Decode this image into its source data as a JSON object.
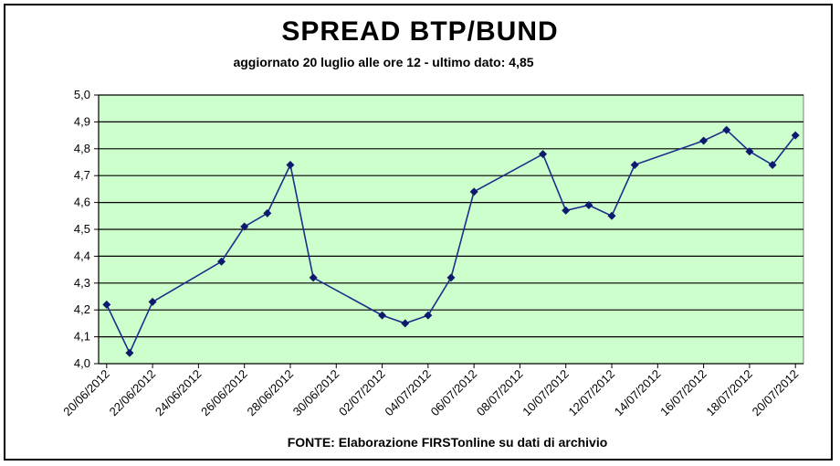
{
  "chart_data": {
    "type": "line",
    "title": "SPREAD BTP/BUND",
    "subtitle": "aggiornato 20 luglio alle ore 12 - ultimo dato: 4,85",
    "source": "FONTE: Elaborazione FIRSTonline su dati di archivio",
    "ylim": [
      4.0,
      5.0
    ],
    "yticks": [
      "4,0",
      "4,1",
      "4,2",
      "4,3",
      "4,4",
      "4,5",
      "4,6",
      "4,7",
      "4,8",
      "4,9",
      "5,0"
    ],
    "xlim": [
      "2012-06-20",
      "2012-07-20"
    ],
    "xticks": [
      "20/06/2012",
      "22/06/2012",
      "24/06/2012",
      "26/06/2012",
      "28/06/2012",
      "30/06/2012",
      "02/07/2012",
      "04/07/2012",
      "06/07/2012",
      "08/07/2012",
      "10/07/2012",
      "12/07/2012",
      "14/07/2012",
      "16/07/2012",
      "18/07/2012",
      "20/07/2012"
    ],
    "grid": true,
    "colors": {
      "plot_background": "#ccffcc",
      "line": "#1f2d8a",
      "marker": "#0d1a6e",
      "grid": "#000000"
    },
    "series": [
      {
        "points": [
          {
            "x": "2012-06-20",
            "y": 4.22
          },
          {
            "x": "2012-06-21",
            "y": 4.04
          },
          {
            "x": "2012-06-22",
            "y": 4.23
          },
          {
            "x": "2012-06-25",
            "y": 4.38
          },
          {
            "x": "2012-06-26",
            "y": 4.51
          },
          {
            "x": "2012-06-27",
            "y": 4.56
          },
          {
            "x": "2012-06-28",
            "y": 4.74
          },
          {
            "x": "2012-06-29",
            "y": 4.32
          },
          {
            "x": "2012-07-02",
            "y": 4.18
          },
          {
            "x": "2012-07-03",
            "y": 4.15
          },
          {
            "x": "2012-07-04",
            "y": 4.18
          },
          {
            "x": "2012-07-05",
            "y": 4.32
          },
          {
            "x": "2012-07-06",
            "y": 4.64
          },
          {
            "x": "2012-07-09",
            "y": 4.78
          },
          {
            "x": "2012-07-10",
            "y": 4.57
          },
          {
            "x": "2012-07-11",
            "y": 4.59
          },
          {
            "x": "2012-07-12",
            "y": 4.55
          },
          {
            "x": "2012-07-13",
            "y": 4.74
          },
          {
            "x": "2012-07-16",
            "y": 4.83
          },
          {
            "x": "2012-07-17",
            "y": 4.87
          },
          {
            "x": "2012-07-18",
            "y": 4.79
          },
          {
            "x": "2012-07-19",
            "y": 4.74
          },
          {
            "x": "2012-07-20",
            "y": 4.85
          }
        ]
      }
    ]
  }
}
